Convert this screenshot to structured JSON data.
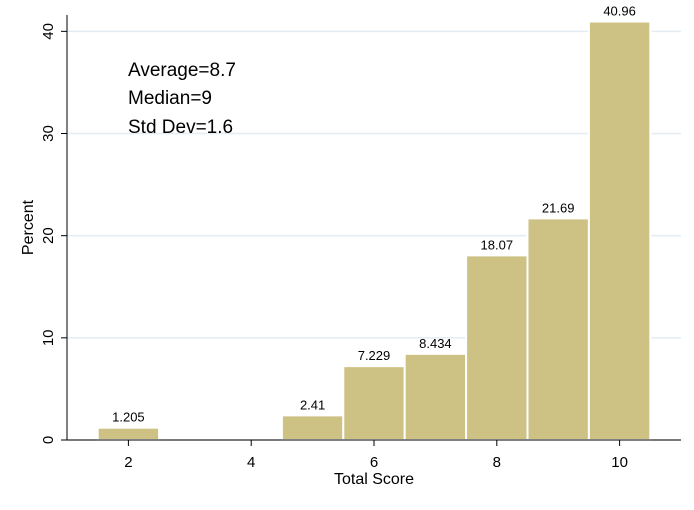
{
  "chart_data": {
    "type": "bar",
    "title": "",
    "xlabel": "Total Score",
    "ylabel": "Percent",
    "x": [
      2,
      5,
      6,
      7,
      8,
      9,
      10
    ],
    "values": [
      1.205,
      2.41,
      7.229,
      8.434,
      18.07,
      21.69,
      40.96
    ],
    "data_labels": [
      "1.205",
      "2.41",
      "7.229",
      "8.434",
      "18.07",
      "21.69",
      "40.96"
    ],
    "xlim": [
      1,
      11
    ],
    "ylim": [
      0,
      41.6
    ],
    "xticks": [
      2,
      4,
      6,
      8,
      10
    ],
    "yticks": [
      0,
      10,
      20,
      30,
      40
    ],
    "grid": "horizontal",
    "legend": "none",
    "annotations": [
      "Average=8.7",
      "Median=9",
      "Std Dev=1.6"
    ],
    "colors": {
      "bar_fill": "#CDC184",
      "bar_edge": "#FFFFFF",
      "grid": "#E3ECF2",
      "axis": "#000000"
    }
  }
}
